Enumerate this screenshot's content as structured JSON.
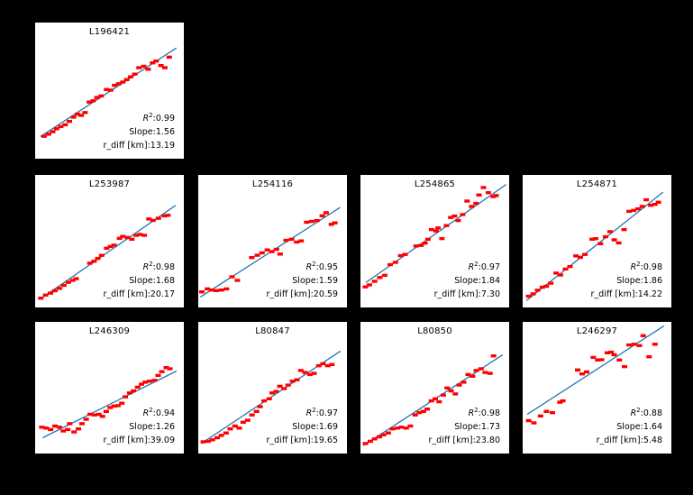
{
  "figure": {
    "background_color": "#000000",
    "plot_background_color": "#ffffff",
    "marker_color": "#ff0000",
    "fit_line_color": "#1f77b4",
    "text_color": "#000000"
  },
  "annotation_labels": {
    "r2_prefix": "R",
    "r2_sup": "2",
    "colon": ":",
    "slope_prefix": "Slope:",
    "rdiff_prefix": "r_diff [km]:"
  },
  "chart_data": [
    {
      "type": "scatter",
      "title": "L196421",
      "grid_position": {
        "row": 0,
        "col": 0
      },
      "stats": {
        "r2": "0.99",
        "slope": "1.56",
        "r_diff_km": "13.19"
      },
      "axes": {
        "ticks_visible": false,
        "coords": "axes-fraction",
        "y_origin": "bottom"
      },
      "fit_line": [
        [
          0.036,
          0.163
        ],
        [
          0.95,
          0.813
        ]
      ],
      "points": [
        [
          0.06,
          0.165
        ],
        [
          0.09,
          0.18
        ],
        [
          0.118,
          0.198
        ],
        [
          0.144,
          0.22
        ],
        [
          0.172,
          0.236
        ],
        [
          0.202,
          0.249
        ],
        [
          0.23,
          0.274
        ],
        [
          0.258,
          0.305
        ],
        [
          0.284,
          0.327
        ],
        [
          0.31,
          0.318
        ],
        [
          0.336,
          0.339
        ],
        [
          0.364,
          0.416
        ],
        [
          0.39,
          0.425
        ],
        [
          0.416,
          0.45
        ],
        [
          0.444,
          0.461
        ],
        [
          0.48,
          0.508
        ],
        [
          0.508,
          0.503
        ],
        [
          0.534,
          0.539
        ],
        [
          0.562,
          0.55
        ],
        [
          0.59,
          0.563
        ],
        [
          0.616,
          0.581
        ],
        [
          0.642,
          0.601
        ],
        [
          0.67,
          0.621
        ],
        [
          0.698,
          0.668
        ],
        [
          0.73,
          0.679
        ],
        [
          0.76,
          0.657
        ],
        [
          0.79,
          0.704
        ],
        [
          0.814,
          0.717
        ],
        [
          0.846,
          0.684
        ],
        [
          0.872,
          0.668
        ],
        [
          0.902,
          0.746
        ]
      ]
    },
    {
      "type": "scatter",
      "title": "L253987",
      "grid_position": {
        "row": 1,
        "col": 0
      },
      "stats": {
        "r2": "0.98",
        "slope": "1.68",
        "r_diff_km": "20.17"
      },
      "axes": {
        "ticks_visible": false,
        "coords": "axes-fraction",
        "y_origin": "bottom"
      },
      "fit_line": [
        [
          0.034,
          0.063
        ],
        [
          0.944,
          0.77
        ]
      ],
      "points": [
        [
          0.038,
          0.07
        ],
        [
          0.07,
          0.093
        ],
        [
          0.103,
          0.108
        ],
        [
          0.133,
          0.126
        ],
        [
          0.163,
          0.144
        ],
        [
          0.193,
          0.167
        ],
        [
          0.223,
          0.19
        ],
        [
          0.253,
          0.205
        ],
        [
          0.276,
          0.217
        ],
        [
          0.368,
          0.334
        ],
        [
          0.396,
          0.348
        ],
        [
          0.421,
          0.37
        ],
        [
          0.447,
          0.393
        ],
        [
          0.481,
          0.447
        ],
        [
          0.507,
          0.46
        ],
        [
          0.531,
          0.47
        ],
        [
          0.567,
          0.521
        ],
        [
          0.59,
          0.537
        ],
        [
          0.62,
          0.528
        ],
        [
          0.65,
          0.515
        ],
        [
          0.68,
          0.544
        ],
        [
          0.706,
          0.551
        ],
        [
          0.734,
          0.544
        ],
        [
          0.765,
          0.668
        ],
        [
          0.793,
          0.657
        ],
        [
          0.829,
          0.673
        ],
        [
          0.869,
          0.691
        ],
        [
          0.893,
          0.695
        ]
      ]
    },
    {
      "type": "scatter",
      "title": "L254116",
      "grid_position": {
        "row": 1,
        "col": 1
      },
      "stats": {
        "r2": "0.95",
        "slope": "1.59",
        "r_diff_km": "20.59"
      },
      "axes": {
        "ticks_visible": false,
        "coords": "axes-fraction",
        "y_origin": "bottom"
      },
      "fit_line": [
        [
          0.014,
          0.079
        ],
        [
          0.955,
          0.756
        ]
      ],
      "points": [
        [
          0.024,
          0.118
        ],
        [
          0.061,
          0.14
        ],
        [
          0.089,
          0.131
        ],
        [
          0.121,
          0.127
        ],
        [
          0.156,
          0.131
        ],
        [
          0.19,
          0.14
        ],
        [
          0.227,
          0.231
        ],
        [
          0.263,
          0.204
        ],
        [
          0.36,
          0.376
        ],
        [
          0.397,
          0.394
        ],
        [
          0.429,
          0.412
        ],
        [
          0.464,
          0.434
        ],
        [
          0.494,
          0.421
        ],
        [
          0.526,
          0.439
        ],
        [
          0.551,
          0.403
        ],
        [
          0.591,
          0.507
        ],
        [
          0.628,
          0.514
        ],
        [
          0.662,
          0.493
        ],
        [
          0.692,
          0.502
        ],
        [
          0.729,
          0.643
        ],
        [
          0.763,
          0.649
        ],
        [
          0.798,
          0.656
        ],
        [
          0.834,
          0.692
        ],
        [
          0.86,
          0.715
        ],
        [
          0.895,
          0.627
        ],
        [
          0.919,
          0.638
        ]
      ]
    },
    {
      "type": "scatter",
      "title": "L254865",
      "grid_position": {
        "row": 1,
        "col": 2
      },
      "stats": {
        "r2": "0.97",
        "slope": "1.84",
        "r_diff_km": "7.30"
      },
      "axes": {
        "ticks_visible": false,
        "coords": "axes-fraction",
        "y_origin": "bottom"
      },
      "fit_line": [
        [
          0.036,
          0.188
        ],
        [
          0.98,
          0.928
        ]
      ],
      "points": [
        [
          0.033,
          0.155
        ],
        [
          0.06,
          0.17
        ],
        [
          0.095,
          0.197
        ],
        [
          0.13,
          0.226
        ],
        [
          0.163,
          0.242
        ],
        [
          0.2,
          0.323
        ],
        [
          0.235,
          0.34
        ],
        [
          0.27,
          0.391
        ],
        [
          0.3,
          0.4
        ],
        [
          0.374,
          0.464
        ],
        [
          0.408,
          0.468
        ],
        [
          0.434,
          0.486
        ],
        [
          0.454,
          0.514
        ],
        [
          0.478,
          0.588
        ],
        [
          0.508,
          0.577
        ],
        [
          0.522,
          0.6
        ],
        [
          0.548,
          0.52
        ],
        [
          0.578,
          0.618
        ],
        [
          0.607,
          0.679
        ],
        [
          0.633,
          0.69
        ],
        [
          0.657,
          0.656
        ],
        [
          0.687,
          0.701
        ],
        [
          0.717,
          0.803
        ],
        [
          0.747,
          0.762
        ],
        [
          0.777,
          0.785
        ],
        [
          0.797,
          0.848
        ],
        [
          0.827,
          0.905
        ],
        [
          0.86,
          0.866
        ],
        [
          0.892,
          0.837
        ],
        [
          0.912,
          0.844
        ]
      ]
    },
    {
      "type": "scatter",
      "title": "L254871",
      "grid_position": {
        "row": 1,
        "col": 3
      },
      "stats": {
        "r2": "0.98",
        "slope": "1.86",
        "r_diff_km": "14.22"
      },
      "axes": {
        "ticks_visible": false,
        "coords": "axes-fraction",
        "y_origin": "bottom"
      },
      "fit_line": [
        [
          0.026,
          0.053
        ],
        [
          0.944,
          0.87
        ]
      ],
      "points": [
        [
          0.04,
          0.085
        ],
        [
          0.07,
          0.103
        ],
        [
          0.1,
          0.13
        ],
        [
          0.133,
          0.153
        ],
        [
          0.159,
          0.16
        ],
        [
          0.189,
          0.183
        ],
        [
          0.225,
          0.259
        ],
        [
          0.254,
          0.245
        ],
        [
          0.288,
          0.29
        ],
        [
          0.318,
          0.309
        ],
        [
          0.358,
          0.389
        ],
        [
          0.388,
          0.378
        ],
        [
          0.418,
          0.4
        ],
        [
          0.467,
          0.515
        ],
        [
          0.491,
          0.519
        ],
        [
          0.523,
          0.481
        ],
        [
          0.557,
          0.533
        ],
        [
          0.587,
          0.572
        ],
        [
          0.616,
          0.51
        ],
        [
          0.646,
          0.487
        ],
        [
          0.682,
          0.588
        ],
        [
          0.716,
          0.725
        ],
        [
          0.746,
          0.732
        ],
        [
          0.775,
          0.744
        ],
        [
          0.805,
          0.762
        ],
        [
          0.831,
          0.812
        ],
        [
          0.861,
          0.771
        ],
        [
          0.889,
          0.778
        ],
        [
          0.913,
          0.794
        ]
      ]
    },
    {
      "type": "scatter",
      "title": "L246309",
      "grid_position": {
        "row": 2,
        "col": 0
      },
      "stats": {
        "r2": "0.94",
        "slope": "1.26",
        "r_diff_km": "39.09"
      },
      "axes": {
        "ticks_visible": false,
        "coords": "axes-fraction",
        "y_origin": "bottom"
      },
      "fit_line": [
        [
          0.051,
          0.12
        ],
        [
          0.951,
          0.627
        ]
      ],
      "points": [
        [
          0.045,
          0.2
        ],
        [
          0.075,
          0.193
        ],
        [
          0.104,
          0.182
        ],
        [
          0.134,
          0.209
        ],
        [
          0.163,
          0.2
        ],
        [
          0.189,
          0.171
        ],
        [
          0.219,
          0.182
        ],
        [
          0.232,
          0.227
        ],
        [
          0.262,
          0.164
        ],
        [
          0.291,
          0.187
        ],
        [
          0.315,
          0.227
        ],
        [
          0.343,
          0.26
        ],
        [
          0.37,
          0.298
        ],
        [
          0.4,
          0.293
        ],
        [
          0.429,
          0.298
        ],
        [
          0.453,
          0.282
        ],
        [
          0.478,
          0.32
        ],
        [
          0.504,
          0.349
        ],
        [
          0.531,
          0.36
        ],
        [
          0.557,
          0.364
        ],
        [
          0.583,
          0.382
        ],
        [
          0.606,
          0.431
        ],
        [
          0.636,
          0.46
        ],
        [
          0.661,
          0.476
        ],
        [
          0.689,
          0.504
        ],
        [
          0.715,
          0.527
        ],
        [
          0.74,
          0.542
        ],
        [
          0.768,
          0.549
        ],
        [
          0.803,
          0.556
        ],
        [
          0.827,
          0.593
        ],
        [
          0.852,
          0.622
        ],
        [
          0.882,
          0.653
        ],
        [
          0.906,
          0.644
        ]
      ]
    },
    {
      "type": "scatter",
      "title": "L80847",
      "grid_position": {
        "row": 2,
        "col": 1
      },
      "stats": {
        "r2": "0.97",
        "slope": "1.69",
        "r_diff_km": "19.65"
      },
      "axes": {
        "ticks_visible": false,
        "coords": "axes-fraction",
        "y_origin": "bottom"
      },
      "fit_line": [
        [
          0.02,
          0.076
        ],
        [
          0.956,
          0.778
        ]
      ],
      "points": [
        [
          0.034,
          0.089
        ],
        [
          0.066,
          0.093
        ],
        [
          0.095,
          0.104
        ],
        [
          0.127,
          0.12
        ],
        [
          0.155,
          0.138
        ],
        [
          0.187,
          0.156
        ],
        [
          0.215,
          0.187
        ],
        [
          0.247,
          0.209
        ],
        [
          0.276,
          0.193
        ],
        [
          0.302,
          0.238
        ],
        [
          0.332,
          0.253
        ],
        [
          0.362,
          0.293
        ],
        [
          0.392,
          0.32
        ],
        [
          0.416,
          0.356
        ],
        [
          0.443,
          0.4
        ],
        [
          0.477,
          0.416
        ],
        [
          0.497,
          0.46
        ],
        [
          0.523,
          0.471
        ],
        [
          0.549,
          0.511
        ],
        [
          0.577,
          0.493
        ],
        [
          0.604,
          0.52
        ],
        [
          0.634,
          0.549
        ],
        [
          0.664,
          0.56
        ],
        [
          0.69,
          0.631
        ],
        [
          0.718,
          0.616
        ],
        [
          0.751,
          0.6
        ],
        [
          0.779,
          0.609
        ],
        [
          0.811,
          0.667
        ],
        [
          0.839,
          0.682
        ],
        [
          0.871,
          0.667
        ],
        [
          0.899,
          0.676
        ]
      ]
    },
    {
      "type": "scatter",
      "title": "L80850",
      "grid_position": {
        "row": 2,
        "col": 2
      },
      "stats": {
        "r2": "0.98",
        "slope": "1.73",
        "r_diff_km": "23.80"
      },
      "axes": {
        "ticks_visible": false,
        "coords": "axes-fraction",
        "y_origin": "bottom"
      },
      "fit_line": [
        [
          0.02,
          0.06
        ],
        [
          0.956,
          0.749
        ]
      ],
      "points": [
        [
          0.034,
          0.076
        ],
        [
          0.066,
          0.093
        ],
        [
          0.095,
          0.111
        ],
        [
          0.127,
          0.127
        ],
        [
          0.155,
          0.142
        ],
        [
          0.187,
          0.156
        ],
        [
          0.215,
          0.187
        ],
        [
          0.247,
          0.193
        ],
        [
          0.276,
          0.2
        ],
        [
          0.308,
          0.193
        ],
        [
          0.336,
          0.209
        ],
        [
          0.368,
          0.293
        ],
        [
          0.396,
          0.311
        ],
        [
          0.423,
          0.32
        ],
        [
          0.449,
          0.338
        ],
        [
          0.477,
          0.4
        ],
        [
          0.503,
          0.416
        ],
        [
          0.529,
          0.393
        ],
        [
          0.557,
          0.444
        ],
        [
          0.583,
          0.498
        ],
        [
          0.61,
          0.476
        ],
        [
          0.638,
          0.453
        ],
        [
          0.664,
          0.52
        ],
        [
          0.694,
          0.542
        ],
        [
          0.724,
          0.6
        ],
        [
          0.754,
          0.587
        ],
        [
          0.779,
          0.631
        ],
        [
          0.811,
          0.644
        ],
        [
          0.839,
          0.616
        ],
        [
          0.871,
          0.609
        ],
        [
          0.895,
          0.742
        ]
      ]
    },
    {
      "type": "scatter",
      "title": "L246297",
      "grid_position": {
        "row": 2,
        "col": 3
      },
      "stats": {
        "r2": "0.88",
        "slope": "1.64",
        "r_diff_km": "5.48"
      },
      "axes": {
        "ticks_visible": false,
        "coords": "axes-fraction",
        "y_origin": "bottom"
      },
      "fit_line": [
        [
          0.03,
          0.297
        ],
        [
          0.95,
          0.97
        ]
      ],
      "points": [
        [
          0.04,
          0.25
        ],
        [
          0.075,
          0.233
        ],
        [
          0.12,
          0.285
        ],
        [
          0.16,
          0.32
        ],
        [
          0.2,
          0.31
        ],
        [
          0.25,
          0.39
        ],
        [
          0.27,
          0.4
        ],
        [
          0.37,
          0.635
        ],
        [
          0.4,
          0.605
        ],
        [
          0.43,
          0.62
        ],
        [
          0.475,
          0.73
        ],
        [
          0.505,
          0.71
        ],
        [
          0.53,
          0.712
        ],
        [
          0.57,
          0.765
        ],
        [
          0.595,
          0.77
        ],
        [
          0.615,
          0.75
        ],
        [
          0.65,
          0.71
        ],
        [
          0.685,
          0.66
        ],
        [
          0.715,
          0.825
        ],
        [
          0.75,
          0.83
        ],
        [
          0.785,
          0.82
        ],
        [
          0.81,
          0.895
        ],
        [
          0.85,
          0.735
        ],
        [
          0.89,
          0.83
        ]
      ]
    }
  ]
}
